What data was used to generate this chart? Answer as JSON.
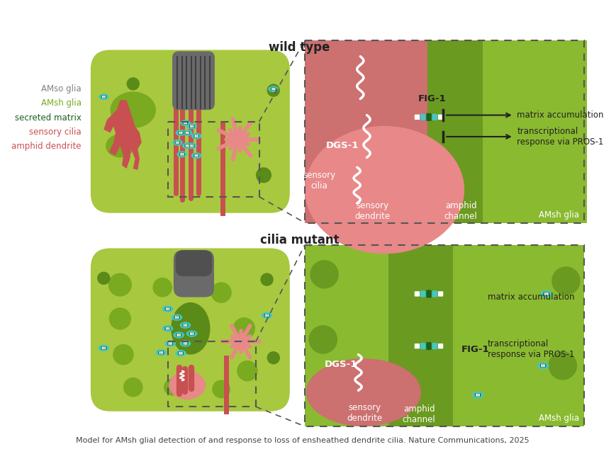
{
  "bg_color": "#ffffff",
  "title_top": "wild type",
  "title_bottom": "cilia mutant",
  "footer": "Model for AMsh glial detection of and response to loss of ensheathed dendrite cilia. Nature Communications, 2025",
  "green_light": "#a8c840",
  "green_mid": "#7aaa20",
  "green_dark": "#5a8a18",
  "gray_amso": "#808080",
  "gray_dark": "#505050",
  "red_dark": "#c85050",
  "red_light": "#e88888",
  "red_mid": "#d06060",
  "cyan_color": "#40c8c8",
  "fig1_green": "#1a6020",
  "white": "#ffffff",
  "arrow_color": "#222222",
  "zoom_border": "#555555",
  "zoom_red": "#cc7070",
  "zoom_green_light": "#8aba30",
  "zoom_green_mid": "#6a9a20",
  "zoom_green_dark": "#558010"
}
